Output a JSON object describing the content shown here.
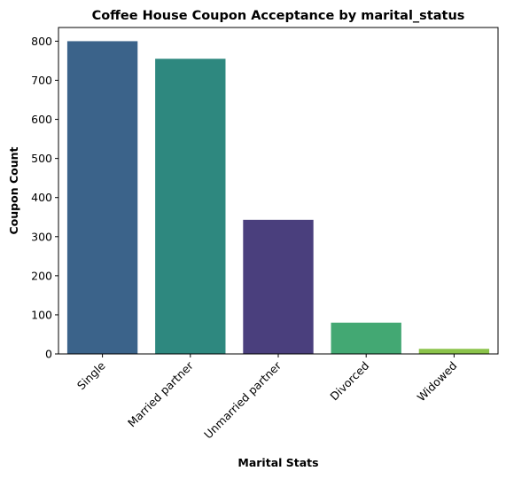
{
  "chart_data": {
    "type": "bar",
    "title": "Coffee House Coupon Acceptance by marital_status",
    "xlabel": "Marital Stats",
    "ylabel": "Coupon Count",
    "categories": [
      "Single",
      "Married partner",
      "Unmarried partner",
      "Divorced",
      "Widowed"
    ],
    "values": [
      800,
      755,
      343,
      80,
      13
    ],
    "colors": [
      "#3b638a",
      "#2e887f",
      "#4a3f7d",
      "#43a873",
      "#8bc34a"
    ],
    "ylim": [
      0,
      835
    ],
    "yticks": [
      0,
      100,
      200,
      300,
      400,
      500,
      600,
      700,
      800
    ],
    "ytick_labels": [
      "0",
      "100",
      "200",
      "300",
      "400",
      "500",
      "600",
      "700",
      "800"
    ],
    "grid": false,
    "legend": "none"
  }
}
